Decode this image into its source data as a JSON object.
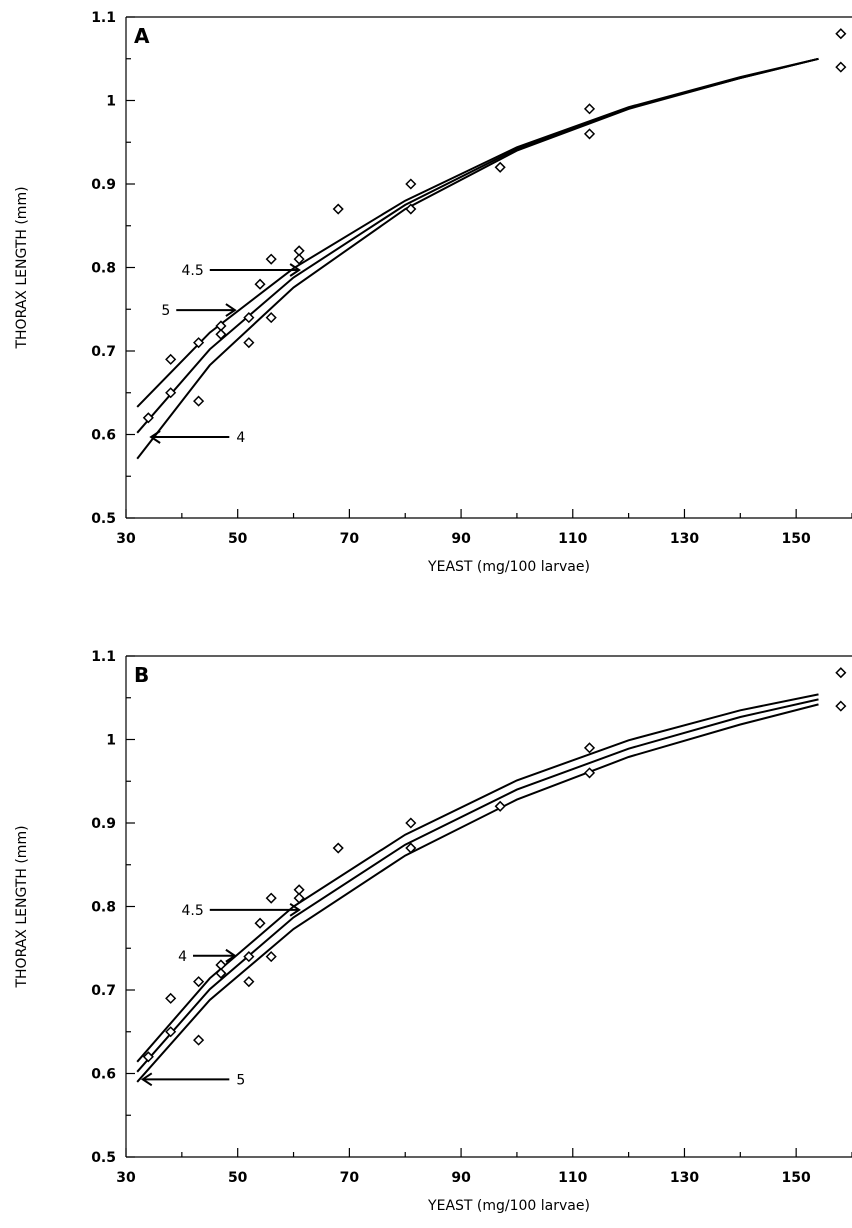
{
  "chart_data": [
    {
      "type": "scatter",
      "panel_label": "A",
      "xlabel": "YEAST (mg/100 larvae)",
      "ylabel": "THORAX LENGTH (mm)",
      "xlim": [
        30,
        160
      ],
      "ylim": [
        0.5,
        1.1
      ],
      "xticks": [
        30,
        50,
        70,
        90,
        110,
        130,
        150
      ],
      "yticks": [
        0.5,
        0.6,
        0.7,
        0.8,
        0.9,
        1,
        1.1
      ],
      "xtick_labels": [
        "30",
        "50",
        "70",
        "90",
        "110",
        "130",
        "150"
      ],
      "ytick_labels": [
        "0.5",
        "0.6",
        "0.7",
        "0.8",
        "0.9",
        "1",
        "1.1"
      ],
      "grid": false,
      "points": [
        {
          "x": 34,
          "y": 0.62
        },
        {
          "x": 38,
          "y": 0.69
        },
        {
          "x": 38,
          "y": 0.65
        },
        {
          "x": 43,
          "y": 0.71
        },
        {
          "x": 43,
          "y": 0.64
        },
        {
          "x": 47,
          "y": 0.73
        },
        {
          "x": 47,
          "y": 0.72
        },
        {
          "x": 52,
          "y": 0.74
        },
        {
          "x": 52,
          "y": 0.71
        },
        {
          "x": 54,
          "y": 0.78
        },
        {
          "x": 56,
          "y": 0.81
        },
        {
          "x": 56,
          "y": 0.74
        },
        {
          "x": 61,
          "y": 0.82
        },
        {
          "x": 61,
          "y": 0.81
        },
        {
          "x": 68,
          "y": 0.87
        },
        {
          "x": 81,
          "y": 0.9
        },
        {
          "x": 81,
          "y": 0.87
        },
        {
          "x": 97,
          "y": 0.92
        },
        {
          "x": 113,
          "y": 0.99
        },
        {
          "x": 113,
          "y": 0.96
        },
        {
          "x": 158,
          "y": 1.08
        },
        {
          "x": 158,
          "y": 1.04
        }
      ],
      "curves": [
        {
          "x": [
            32,
            45,
            60,
            80,
            100,
            120,
            140,
            154
          ],
          "y": [
            0.633,
            0.722,
            0.799,
            0.88,
            0.944,
            0.992,
            1.028,
            1.05
          ]
        },
        {
          "x": [
            32,
            45,
            60,
            80,
            100,
            120,
            140,
            154
          ],
          "y": [
            0.602,
            0.702,
            0.788,
            0.875,
            0.942,
            0.991,
            1.027,
            1.05
          ]
        },
        {
          "x": [
            32,
            45,
            60,
            80,
            100,
            120,
            140,
            154
          ],
          "y": [
            0.571,
            0.683,
            0.776,
            0.87,
            0.94,
            0.99,
            1.027,
            1.05
          ]
        }
      ],
      "annotations": [
        {
          "text": "4.5",
          "pointer": "right",
          "x_start": 45,
          "x_end": 61,
          "y": 0.797
        },
        {
          "text": "5",
          "pointer": "right",
          "x_start": 39,
          "x_end": 49.5,
          "y": 0.749
        },
        {
          "text": "4",
          "pointer": "left",
          "x_start": 48.5,
          "x_end": 34.5,
          "y": 0.597
        }
      ]
    },
    {
      "type": "scatter",
      "panel_label": "B",
      "xlabel": "YEAST (mg/100 larvae)",
      "ylabel": "THORAX LENGTH (mm)",
      "xlim": [
        30,
        160
      ],
      "ylim": [
        0.5,
        1.1
      ],
      "xticks": [
        30,
        50,
        70,
        90,
        110,
        130,
        150
      ],
      "yticks": [
        0.5,
        0.6,
        0.7,
        0.8,
        0.9,
        1,
        1.1
      ],
      "xtick_labels": [
        "30",
        "50",
        "70",
        "90",
        "110",
        "130",
        "150"
      ],
      "ytick_labels": [
        "0.5",
        "0.6",
        "0.7",
        "0.8",
        "0.9",
        "1",
        "1.1"
      ],
      "grid": false,
      "points": [
        {
          "x": 34,
          "y": 0.62
        },
        {
          "x": 38,
          "y": 0.69
        },
        {
          "x": 38,
          "y": 0.65
        },
        {
          "x": 43,
          "y": 0.71
        },
        {
          "x": 43,
          "y": 0.64
        },
        {
          "x": 47,
          "y": 0.73
        },
        {
          "x": 47,
          "y": 0.72
        },
        {
          "x": 52,
          "y": 0.74
        },
        {
          "x": 52,
          "y": 0.71
        },
        {
          "x": 54,
          "y": 0.78
        },
        {
          "x": 56,
          "y": 0.81
        },
        {
          "x": 56,
          "y": 0.74
        },
        {
          "x": 61,
          "y": 0.82
        },
        {
          "x": 61,
          "y": 0.81
        },
        {
          "x": 68,
          "y": 0.87
        },
        {
          "x": 81,
          "y": 0.9
        },
        {
          "x": 81,
          "y": 0.87
        },
        {
          "x": 97,
          "y": 0.92
        },
        {
          "x": 113,
          "y": 0.99
        },
        {
          "x": 113,
          "y": 0.96
        },
        {
          "x": 158,
          "y": 1.08
        },
        {
          "x": 158,
          "y": 1.04
        }
      ],
      "curves": [
        {
          "x": [
            32,
            45,
            60,
            80,
            100,
            120,
            140,
            154
          ],
          "y": [
            0.614,
            0.714,
            0.8,
            0.886,
            0.951,
            0.999,
            1.035,
            1.054
          ]
        },
        {
          "x": [
            32,
            45,
            60,
            80,
            100,
            120,
            140,
            154
          ],
          "y": [
            0.602,
            0.701,
            0.787,
            0.874,
            0.94,
            0.989,
            1.027,
            1.048
          ]
        },
        {
          "x": [
            32,
            45,
            60,
            80,
            100,
            120,
            140,
            154
          ],
          "y": [
            0.59,
            0.688,
            0.773,
            0.861,
            0.928,
            0.979,
            1.018,
            1.042
          ]
        }
      ],
      "annotations": [
        {
          "text": "4.5",
          "pointer": "right",
          "x_start": 45,
          "x_end": 61,
          "y": 0.796
        },
        {
          "text": "4",
          "pointer": "right",
          "x_start": 42,
          "x_end": 49.5,
          "y": 0.741
        },
        {
          "text": "5",
          "pointer": "left",
          "x_start": 48.5,
          "x_end": 33,
          "y": 0.593
        }
      ]
    }
  ]
}
